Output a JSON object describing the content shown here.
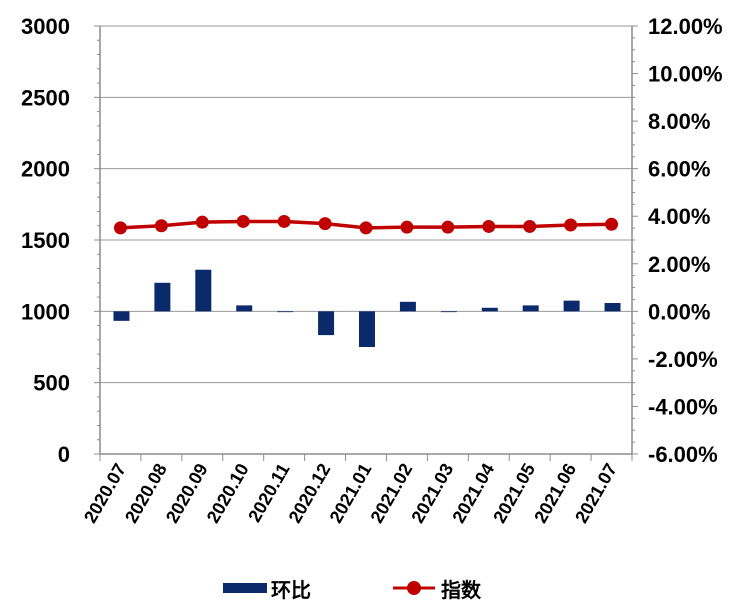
{
  "chart_data": {
    "type": "bar+line",
    "categories": [
      "2020.07",
      "2020.08",
      "2020.09",
      "2020.10",
      "2020.11",
      "2020.12",
      "2021.01",
      "2021.02",
      "2021.03",
      "2021.04",
      "2021.05",
      "2021.06",
      "2021.07"
    ],
    "series": [
      {
        "name": "环比",
        "type": "bar",
        "axis": "right",
        "unit": "%",
        "values": [
          -0.4,
          1.2,
          1.75,
          0.25,
          -0.02,
          -1.0,
          -1.5,
          0.4,
          0.0,
          0.15,
          0.25,
          0.45,
          0.35
        ],
        "color": "#0b2a6b"
      },
      {
        "name": "指数",
        "type": "line",
        "axis": "left",
        "values": [
          1585,
          1600,
          1625,
          1630,
          1630,
          1615,
          1585,
          1590,
          1590,
          1595,
          1595,
          1605,
          1610
        ],
        "color": "#c00000"
      }
    ],
    "y_left": {
      "min": 0,
      "max": 3000,
      "ticks": [
        0,
        500,
        1000,
        1500,
        2000,
        2500,
        3000
      ],
      "labels": [
        "0",
        "500",
        "1000",
        "1500",
        "2000",
        "2500",
        "3000"
      ]
    },
    "y_right": {
      "min": -6,
      "max": 12,
      "ticks": [
        -6,
        -4,
        -2,
        0,
        2,
        4,
        6,
        8,
        10,
        12
      ],
      "labels": [
        "-6.00%",
        "-4.00%",
        "-2.00%",
        "0.00%",
        "2.00%",
        "4.00%",
        "6.00%",
        "8.00%",
        "10.00%",
        "12.00%"
      ]
    },
    "grid": true,
    "legend": {
      "position": "bottom",
      "items": [
        "环比",
        "指数"
      ]
    }
  }
}
